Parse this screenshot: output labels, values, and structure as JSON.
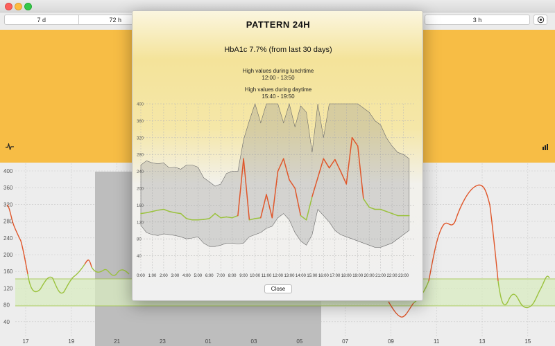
{
  "window": {
    "close": "close",
    "minimize": "minimize",
    "zoom": "zoom"
  },
  "toolbar": {
    "range_left": [
      "7 d",
      "72 h"
    ],
    "range_right": "3 h",
    "settings_icon": "settings-icon"
  },
  "colors": {
    "banner": "#f7bd45",
    "high": "#e0562a",
    "in_range": "#9bc23d",
    "target_band": "#d8ebc0",
    "selection": "#bdbdbd"
  },
  "main_chart": {
    "y_ticks": [
      "400",
      "360",
      "320",
      "280",
      "240",
      "200",
      "160",
      "120",
      "80",
      "40"
    ],
    "x_ticks": [
      "17",
      "19",
      "21",
      "23",
      "01",
      "03",
      "05",
      "07",
      "09",
      "11",
      "13",
      "15"
    ]
  },
  "pattern": {
    "title": "PATTERN 24H",
    "hba1c": "HbA1c  7.7% (from last 30 days)",
    "info1_title": "High values during lunchtime",
    "info1_range": "12:00 - 13:50",
    "info2_title": "High values during daytime",
    "info2_range": "15:40 - 19:50",
    "close_label": "Close",
    "chart_data": {
      "type": "area",
      "y_ticks": [
        "400",
        "360",
        "320",
        "280",
        "240",
        "200",
        "160",
        "120",
        "80",
        "40"
      ],
      "ylim": [
        0,
        400
      ],
      "x_ticks": [
        "0:00",
        "1:00",
        "2:00",
        "3:00",
        "4:00",
        "5:00",
        "6:00",
        "7:00",
        "8:00",
        "9:00",
        "10:00",
        "11:00",
        "12:00",
        "13:00",
        "14:00",
        "15:00",
        "16:00",
        "17:00",
        "18:00",
        "19:00",
        "20:00",
        "21:00",
        "22:00",
        "23:00"
      ],
      "hours": [
        0,
        0.5,
        1,
        1.5,
        2,
        2.5,
        3,
        3.5,
        4,
        4.5,
        5,
        5.5,
        6,
        6.5,
        7,
        7.5,
        8,
        8.5,
        9,
        9.5,
        10,
        10.5,
        11,
        11.5,
        12,
        12.5,
        13,
        13.5,
        14,
        14.5,
        15,
        15.5,
        16,
        16.5,
        17,
        17.5,
        18,
        18.5,
        19,
        19.5,
        20,
        20.5,
        21,
        21.5,
        22,
        22.5,
        23,
        23.5
      ],
      "median": [
        140,
        142,
        145,
        148,
        150,
        145,
        142,
        140,
        128,
        125,
        125,
        126,
        128,
        140,
        130,
        132,
        130,
        135,
        270,
        125,
        128,
        130,
        185,
        130,
        240,
        270,
        220,
        200,
        135,
        125,
        180,
        225,
        270,
        248,
        268,
        240,
        210,
        320,
        300,
        175,
        155,
        150,
        150,
        145,
        140,
        135,
        135,
        135
      ],
      "upper": [
        255,
        265,
        260,
        258,
        260,
        248,
        250,
        245,
        255,
        255,
        250,
        225,
        215,
        205,
        210,
        235,
        240,
        240,
        315,
        360,
        400,
        355,
        400,
        400,
        400,
        355,
        400,
        345,
        395,
        380,
        285,
        400,
        320,
        400,
        400,
        400,
        400,
        400,
        400,
        390,
        380,
        360,
        350,
        320,
        300,
        285,
        280,
        270
      ],
      "lower": [
        112,
        95,
        90,
        88,
        92,
        90,
        88,
        85,
        80,
        82,
        85,
        70,
        62,
        62,
        65,
        70,
        70,
        68,
        70,
        85,
        90,
        95,
        105,
        110,
        130,
        140,
        125,
        95,
        75,
        65,
        90,
        150,
        135,
        120,
        100,
        90,
        85,
        80,
        75,
        70,
        65,
        60,
        60,
        65,
        70,
        80,
        90,
        100
      ],
      "threshold": 180
    }
  }
}
